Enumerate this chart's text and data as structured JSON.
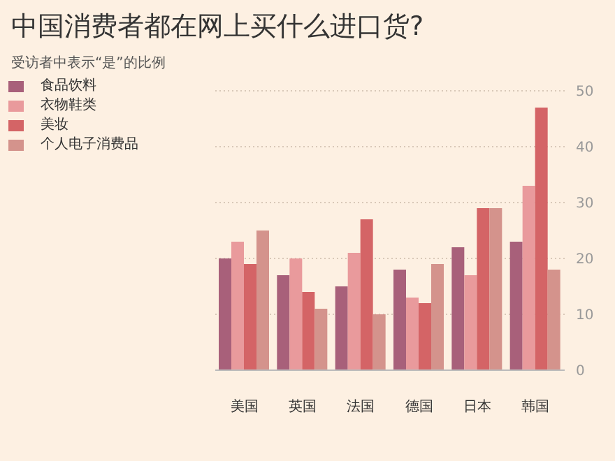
{
  "chart_data": {
    "type": "bar",
    "title": "中国消费者都在网上买什么进口货?",
    "subtitle": "受访者中表示“是”的比例",
    "categories": [
      "美国",
      "英国",
      "法国",
      "德国",
      "日本",
      "韩国"
    ],
    "series": [
      {
        "name": "食品饮料",
        "color": "#a8607a",
        "values": [
          20,
          17,
          15,
          18,
          22,
          23
        ]
      },
      {
        "name": "衣物鞋类",
        "color": "#e99a9c",
        "values": [
          23,
          20,
          21,
          13,
          17,
          33
        ]
      },
      {
        "name": "美妆",
        "color": "#d46466",
        "values": [
          19,
          14,
          27,
          12,
          29,
          47
        ]
      },
      {
        "name": "个人电子消费品",
        "color": "#d4938c",
        "values": [
          25,
          11,
          10,
          19,
          29,
          18
        ]
      }
    ],
    "ylim": [
      0,
      50
    ],
    "yticks": [
      0,
      10,
      20,
      30,
      40,
      50
    ],
    "grid": "y",
    "legend": "top left"
  }
}
